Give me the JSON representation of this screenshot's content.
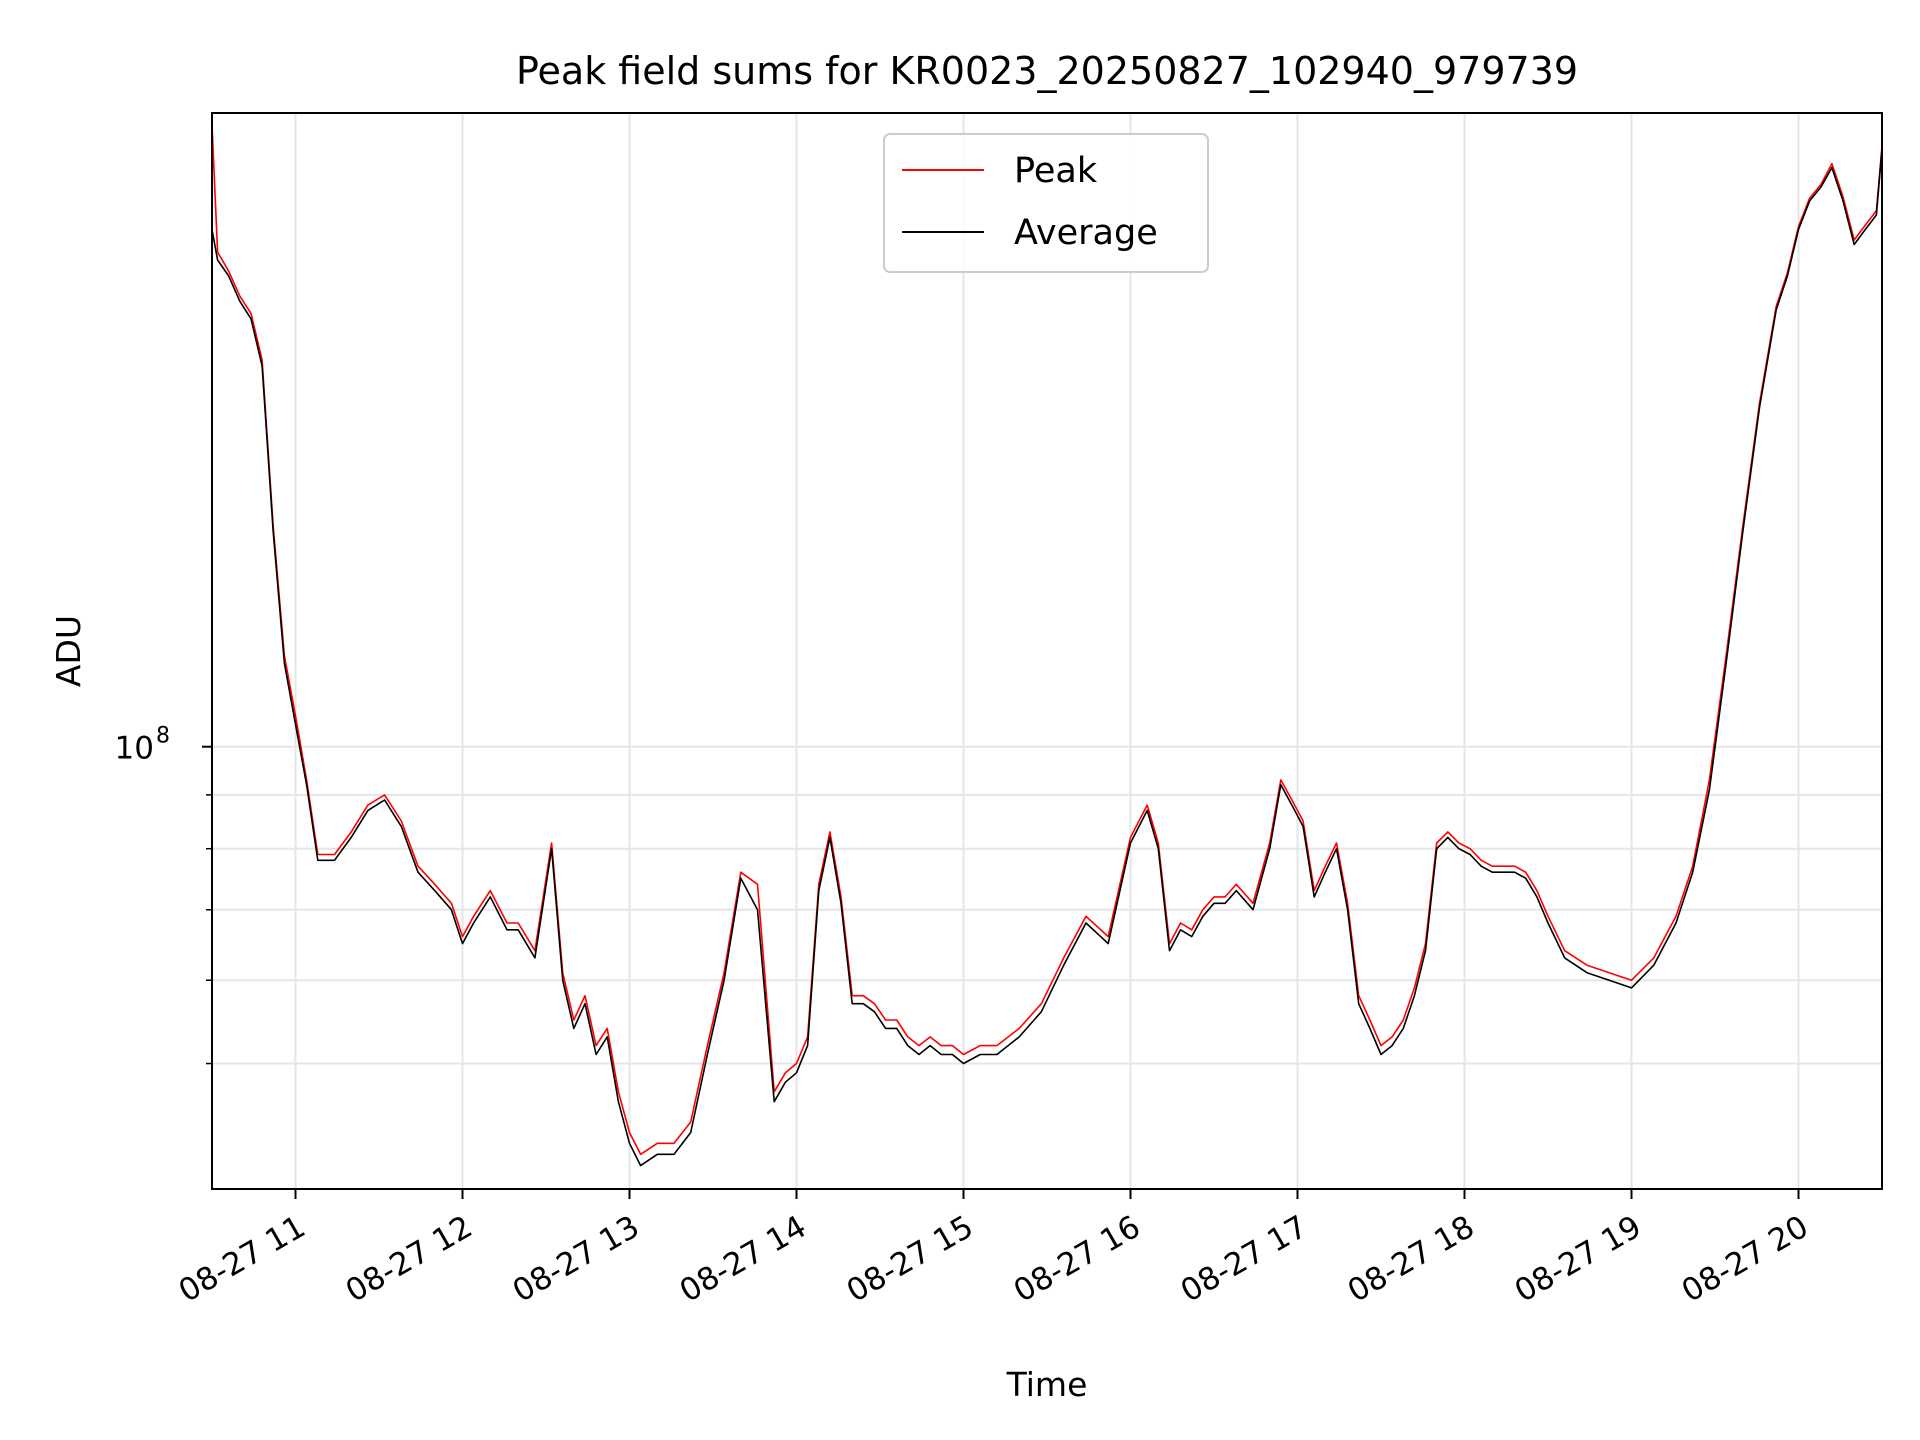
{
  "chart_data": {
    "type": "line",
    "title": "Peak field sums for KR0023_20250827_102940_979739",
    "xlabel": "Time",
    "ylabel": "ADU",
    "y_scale": "log",
    "ylim": [
      38000000,
      400000000
    ],
    "xlim": [
      "2025-08-27 10:30",
      "2025-08-27 20:30"
    ],
    "grid": true,
    "legend_position": "top-center",
    "x_tick_labels": [
      "08-27 11",
      "08-27 12",
      "08-27 13",
      "08-27 14",
      "08-27 15",
      "08-27 16",
      "08-27 17",
      "08-27 18",
      "08-27 19",
      "08-27 20"
    ],
    "y_tick_labels": [
      {
        "base": "10",
        "exp": "8",
        "value": 100000000
      }
    ],
    "y_minor_gridlines": [
      50000000,
      60000000,
      70000000,
      80000000,
      90000000
    ],
    "series": [
      {
        "name": "Peak",
        "color": "#ff0000"
      },
      {
        "name": "Average",
        "color": "#000000"
      }
    ],
    "x": [
      "10:30",
      "10:32",
      "10:36",
      "10:40",
      "10:44",
      "10:48",
      "10:52",
      "10:56",
      "11:00",
      "11:04",
      "11:08",
      "11:14",
      "11:20",
      "11:26",
      "11:32",
      "11:38",
      "11:44",
      "11:50",
      "11:56",
      "12:00",
      "12:04",
      "12:10",
      "12:16",
      "12:20",
      "12:26",
      "12:32",
      "12:36",
      "12:40",
      "12:44",
      "12:48",
      "12:52",
      "12:56",
      "13:00",
      "13:04",
      "13:10",
      "13:16",
      "13:22",
      "13:28",
      "13:34",
      "13:40",
      "13:46",
      "13:52",
      "13:56",
      "14:00",
      "14:04",
      "14:08",
      "14:12",
      "14:16",
      "14:20",
      "14:24",
      "14:28",
      "14:32",
      "14:36",
      "14:40",
      "14:44",
      "14:48",
      "14:52",
      "14:56",
      "15:00",
      "15:06",
      "15:12",
      "15:20",
      "15:28",
      "15:36",
      "15:44",
      "15:52",
      "16:00",
      "16:06",
      "16:10",
      "16:14",
      "16:18",
      "16:22",
      "16:26",
      "16:30",
      "16:34",
      "16:38",
      "16:44",
      "16:50",
      "16:54",
      "16:58",
      "17:02",
      "17:06",
      "17:10",
      "17:14",
      "17:18",
      "17:22",
      "17:26",
      "17:30",
      "17:34",
      "17:38",
      "17:42",
      "17:46",
      "17:50",
      "17:54",
      "17:58",
      "18:02",
      "18:06",
      "18:10",
      "18:14",
      "18:18",
      "18:22",
      "18:26",
      "18:30",
      "18:36",
      "18:44",
      "18:52",
      "19:00",
      "19:08",
      "19:16",
      "19:22",
      "19:28",
      "19:34",
      "19:40",
      "19:46",
      "19:52",
      "19:56",
      "20:00",
      "20:04",
      "20:08",
      "20:12",
      "20:16",
      "20:20",
      "20:24",
      "20:28",
      "20:30"
    ],
    "values_average": [
      310000000,
      290000000,
      280000000,
      265000000,
      255000000,
      230000000,
      160000000,
      120000000,
      105000000,
      92000000,
      78000000,
      78000000,
      82000000,
      87000000,
      89000000,
      84000000,
      76000000,
      73000000,
      70000000,
      65000000,
      68000000,
      72000000,
      67000000,
      67000000,
      63000000,
      80000000,
      60000000,
      54000000,
      57000000,
      51000000,
      53000000,
      46000000,
      42000000,
      40000000,
      41000000,
      41000000,
      43000000,
      51000000,
      60000000,
      75000000,
      70000000,
      46000000,
      48000000,
      49000000,
      52000000,
      73000000,
      82000000,
      71000000,
      57000000,
      57000000,
      56000000,
      54000000,
      54000000,
      52000000,
      51000000,
      52000000,
      51000000,
      51000000,
      50000000,
      51000000,
      51000000,
      53000000,
      56000000,
      62000000,
      68000000,
      65000000,
      81000000,
      87000000,
      80000000,
      64000000,
      67000000,
      66000000,
      69000000,
      71000000,
      71000000,
      73000000,
      70000000,
      80000000,
      92000000,
      88000000,
      84000000,
      72000000,
      76000000,
      80000000,
      70000000,
      57000000,
      54000000,
      51000000,
      52000000,
      54000000,
      58000000,
      64000000,
      80000000,
      82000000,
      80000000,
      79000000,
      77000000,
      76000000,
      76000000,
      76000000,
      75000000,
      72000000,
      68000000,
      63000000,
      61000000,
      60000000,
      59000000,
      62000000,
      68000000,
      76000000,
      91000000,
      120000000,
      160000000,
      210000000,
      260000000,
      280000000,
      310000000,
      330000000,
      340000000,
      355000000,
      330000000,
      300000000,
      310000000,
      320000000,
      370000000
    ],
    "values_peak": [
      390000000,
      295000000,
      283000000,
      268000000,
      258000000,
      233000000,
      162000000,
      122000000,
      107000000,
      93000000,
      79000000,
      79000000,
      83000000,
      88000000,
      90000000,
      85000000,
      77000000,
      74000000,
      71000000,
      66000000,
      69000000,
      73000000,
      68000000,
      68000000,
      64000000,
      81000000,
      61000000,
      55000000,
      58000000,
      52000000,
      54000000,
      47000000,
      43000000,
      41000000,
      42000000,
      42000000,
      44000000,
      52000000,
      61000000,
      76000000,
      74000000,
      47000000,
      49000000,
      50000000,
      53000000,
      74000000,
      83000000,
      72000000,
      58000000,
      58000000,
      57000000,
      55000000,
      55000000,
      53000000,
      52000000,
      53000000,
      52000000,
      52000000,
      51000000,
      52000000,
      52000000,
      54000000,
      57000000,
      63000000,
      69000000,
      66000000,
      82000000,
      88000000,
      81000000,
      65000000,
      68000000,
      67000000,
      70000000,
      72000000,
      72000000,
      74000000,
      71000000,
      81000000,
      93000000,
      89000000,
      85000000,
      73000000,
      77000000,
      81000000,
      71000000,
      58000000,
      55000000,
      52000000,
      53000000,
      55000000,
      59000000,
      65000000,
      81000000,
      83000000,
      81000000,
      80000000,
      78000000,
      77000000,
      77000000,
      77000000,
      76000000,
      73000000,
      69000000,
      64000000,
      62000000,
      61000000,
      60000000,
      63000000,
      69000000,
      77000000,
      93000000,
      122000000,
      162000000,
      212000000,
      262000000,
      282000000,
      312000000,
      332000000,
      342000000,
      358000000,
      333000000,
      303000000,
      313000000,
      323000000,
      372000000
    ]
  }
}
